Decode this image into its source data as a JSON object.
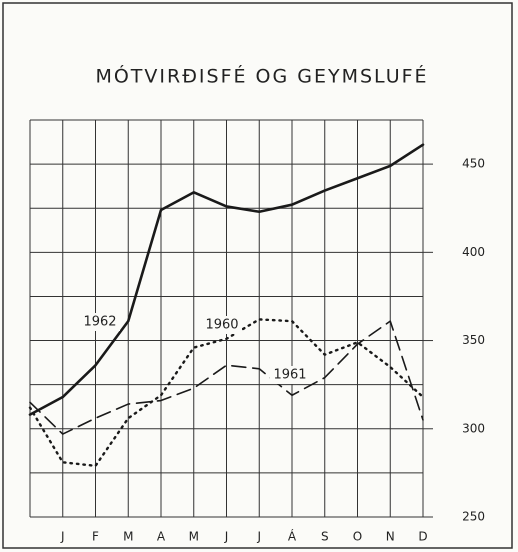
{
  "chart_data": {
    "type": "line",
    "title": "MÓTVIRÐISFÉ OG GEYMSLUFÉ",
    "categories": [
      null,
      "J",
      "F",
      "M",
      "A",
      "M",
      "J",
      "J",
      "Á",
      "S",
      "O",
      "N",
      "D"
    ],
    "series": [
      {
        "name": "1962",
        "color": "#1a1a1a",
        "style": "solid",
        "values": [
          308,
          318,
          336,
          361,
          424,
          434,
          426,
          423,
          427,
          435,
          442,
          449,
          461
        ]
      },
      {
        "name": "1960",
        "color": "#1a1a1a",
        "style": "dotted",
        "values": [
          312,
          281,
          279,
          306,
          319,
          346,
          351,
          362,
          361,
          342,
          349,
          335,
          318
        ]
      },
      {
        "name": "1961",
        "color": "#1a1a1a",
        "style": "dashed",
        "values": [
          315,
          297,
          306,
          314,
          316,
          323,
          336,
          334,
          319,
          329,
          348,
          361,
          305
        ]
      }
    ],
    "ylim": [
      250,
      475
    ],
    "yticks": [
      250,
      300,
      350,
      400,
      450
    ],
    "minor_yticks": [
      275,
      325,
      375,
      425,
      475
    ],
    "grid": true,
    "y_axis_side": "right"
  }
}
